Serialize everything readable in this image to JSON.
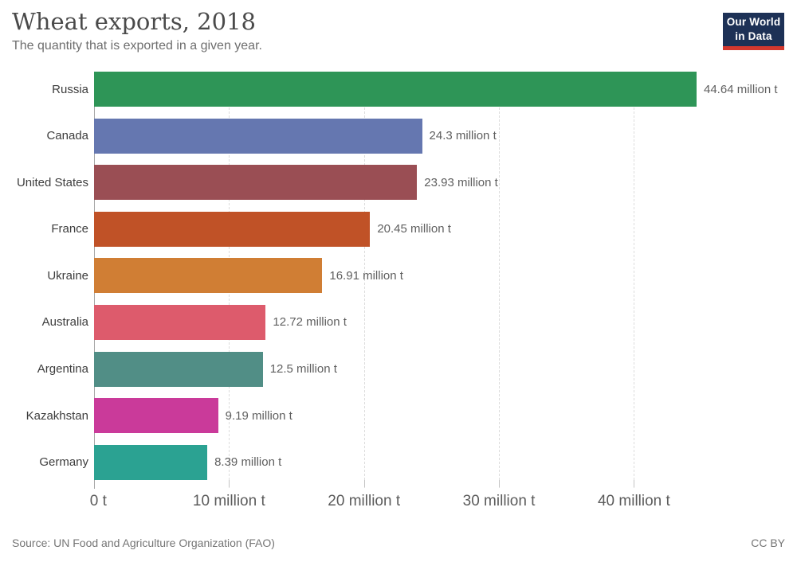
{
  "header": {
    "title": "Wheat exports, 2018",
    "subtitle": "The quantity that is exported in a given year."
  },
  "logo": {
    "line1": "Our World",
    "line2": "in Data",
    "background_color": "#1d3156",
    "accent_color": "#d3382e"
  },
  "chart_data": {
    "type": "bar",
    "orientation": "horizontal",
    "title": "Wheat exports, 2018",
    "subtitle": "The quantity that is exported in a given year.",
    "categories": [
      "Russia",
      "Canada",
      "United States",
      "France",
      "Ukraine",
      "Australia",
      "Argentina",
      "Kazakhstan",
      "Germany"
    ],
    "values": [
      44.64,
      24.3,
      23.93,
      20.45,
      16.91,
      12.72,
      12.5,
      9.19,
      8.39
    ],
    "value_labels": [
      "44.64 million t",
      "24.3 million t",
      "23.93 million t",
      "20.45 million t",
      "16.91 million t",
      "12.72 million t",
      "12.5 million t",
      "9.19 million t",
      "8.39 million t"
    ],
    "colors": [
      "#2e9557",
      "#6577b0",
      "#9a4e54",
      "#c05227",
      "#d07e34",
      "#dd5b6c",
      "#518e86",
      "#ca3a9a",
      "#2ba292"
    ],
    "xlabel": "",
    "ylabel": "",
    "xlim": [
      0,
      44.64
    ],
    "grid": true,
    "x_ticks": [
      {
        "value": 0,
        "label": "0 t"
      },
      {
        "value": 10,
        "label": "10 million t"
      },
      {
        "value": 20,
        "label": "20 million t"
      },
      {
        "value": 30,
        "label": "30 million t"
      },
      {
        "value": 40,
        "label": "40 million t"
      }
    ]
  },
  "footer": {
    "source": "Source: UN Food and Agriculture Organization (FAO)",
    "license": "CC BY"
  }
}
